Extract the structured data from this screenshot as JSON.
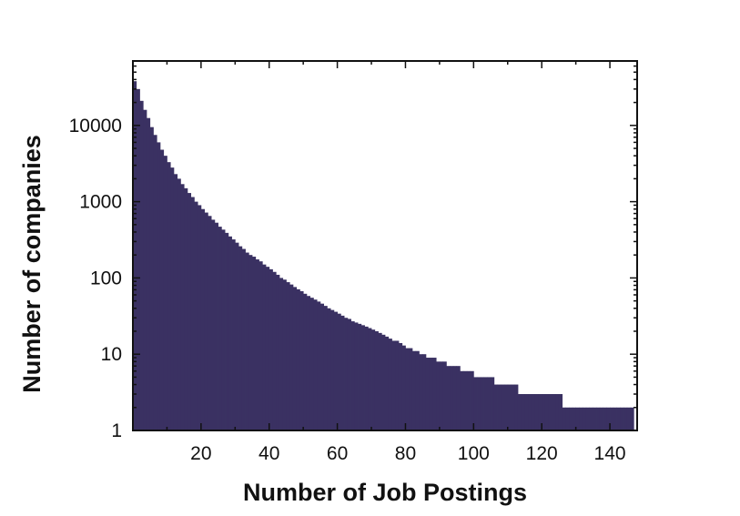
{
  "chart_data": {
    "type": "bar",
    "title": "",
    "xlabel": "Number of Job Postings",
    "ylabel": "Number of companies",
    "xlim": [
      0,
      148
    ],
    "ylim": [
      1,
      70000
    ],
    "yscale": "log",
    "xticks": [
      20,
      40,
      60,
      80,
      100,
      120,
      140
    ],
    "yticks": [
      1,
      10,
      100,
      1000,
      10000
    ],
    "ytick_labels": [
      "1",
      "10",
      "100",
      "1000",
      "10000"
    ],
    "grid": false,
    "legend": "none",
    "bar_color": "#3a3162",
    "x": [
      1,
      2,
      3,
      4,
      5,
      6,
      7,
      8,
      9,
      10,
      11,
      12,
      13,
      14,
      15,
      16,
      17,
      18,
      19,
      20,
      21,
      22,
      23,
      24,
      25,
      26,
      27,
      28,
      29,
      30,
      31,
      32,
      33,
      34,
      35,
      36,
      37,
      38,
      39,
      40,
      41,
      42,
      43,
      44,
      45,
      46,
      47,
      48,
      49,
      50,
      51,
      52,
      53,
      54,
      55,
      56,
      57,
      58,
      59,
      60,
      61,
      62,
      63,
      64,
      65,
      66,
      67,
      68,
      69,
      70,
      71,
      72,
      73,
      74,
      75,
      76,
      77,
      78,
      79,
      80,
      81,
      82,
      83,
      84,
      85,
      86,
      87,
      88,
      89,
      90,
      91,
      92,
      93,
      94,
      95,
      96,
      97,
      98,
      99,
      100,
      101,
      102,
      103,
      104,
      105,
      106,
      107,
      108,
      109,
      110,
      111,
      112,
      113,
      114,
      115,
      116,
      117,
      118,
      119,
      120,
      121,
      122,
      123,
      124,
      125,
      126,
      127,
      128,
      129,
      130,
      131,
      132,
      133,
      134,
      135,
      136,
      137,
      138,
      139,
      140,
      141,
      142,
      143,
      144,
      145,
      146,
      147
    ],
    "values": [
      38000,
      30000,
      21000,
      16000,
      12500,
      9500,
      7500,
      6000,
      4800,
      4000,
      3300,
      2800,
      2300,
      2000,
      1700,
      1500,
      1300,
      1150,
      1000,
      900,
      800,
      720,
      650,
      580,
      530,
      470,
      430,
      390,
      350,
      320,
      290,
      260,
      240,
      215,
      200,
      190,
      175,
      165,
      150,
      140,
      130,
      120,
      110,
      100,
      95,
      88,
      82,
      76,
      71,
      67,
      62,
      58,
      55,
      52,
      49,
      46,
      43,
      40,
      38,
      36,
      34,
      32,
      30,
      29,
      27,
      26,
      25,
      24,
      23,
      22,
      21,
      20,
      19,
      18,
      17,
      16,
      15,
      15,
      14,
      13,
      12,
      12,
      11,
      11,
      10,
      10,
      9,
      9,
      9,
      8,
      8,
      8,
      7,
      7,
      7,
      7,
      6,
      6,
      6,
      6,
      5,
      5,
      5,
      5,
      5,
      5,
      4,
      4,
      4,
      4,
      4,
      4,
      4,
      3,
      3,
      3,
      3,
      3,
      3,
      3,
      3,
      3,
      3,
      3,
      3,
      3,
      2,
      2,
      2,
      2,
      2,
      2,
      2,
      2,
      2,
      2,
      2,
      2,
      2,
      2,
      2,
      2,
      2,
      2,
      2,
      2,
      2
    ]
  }
}
